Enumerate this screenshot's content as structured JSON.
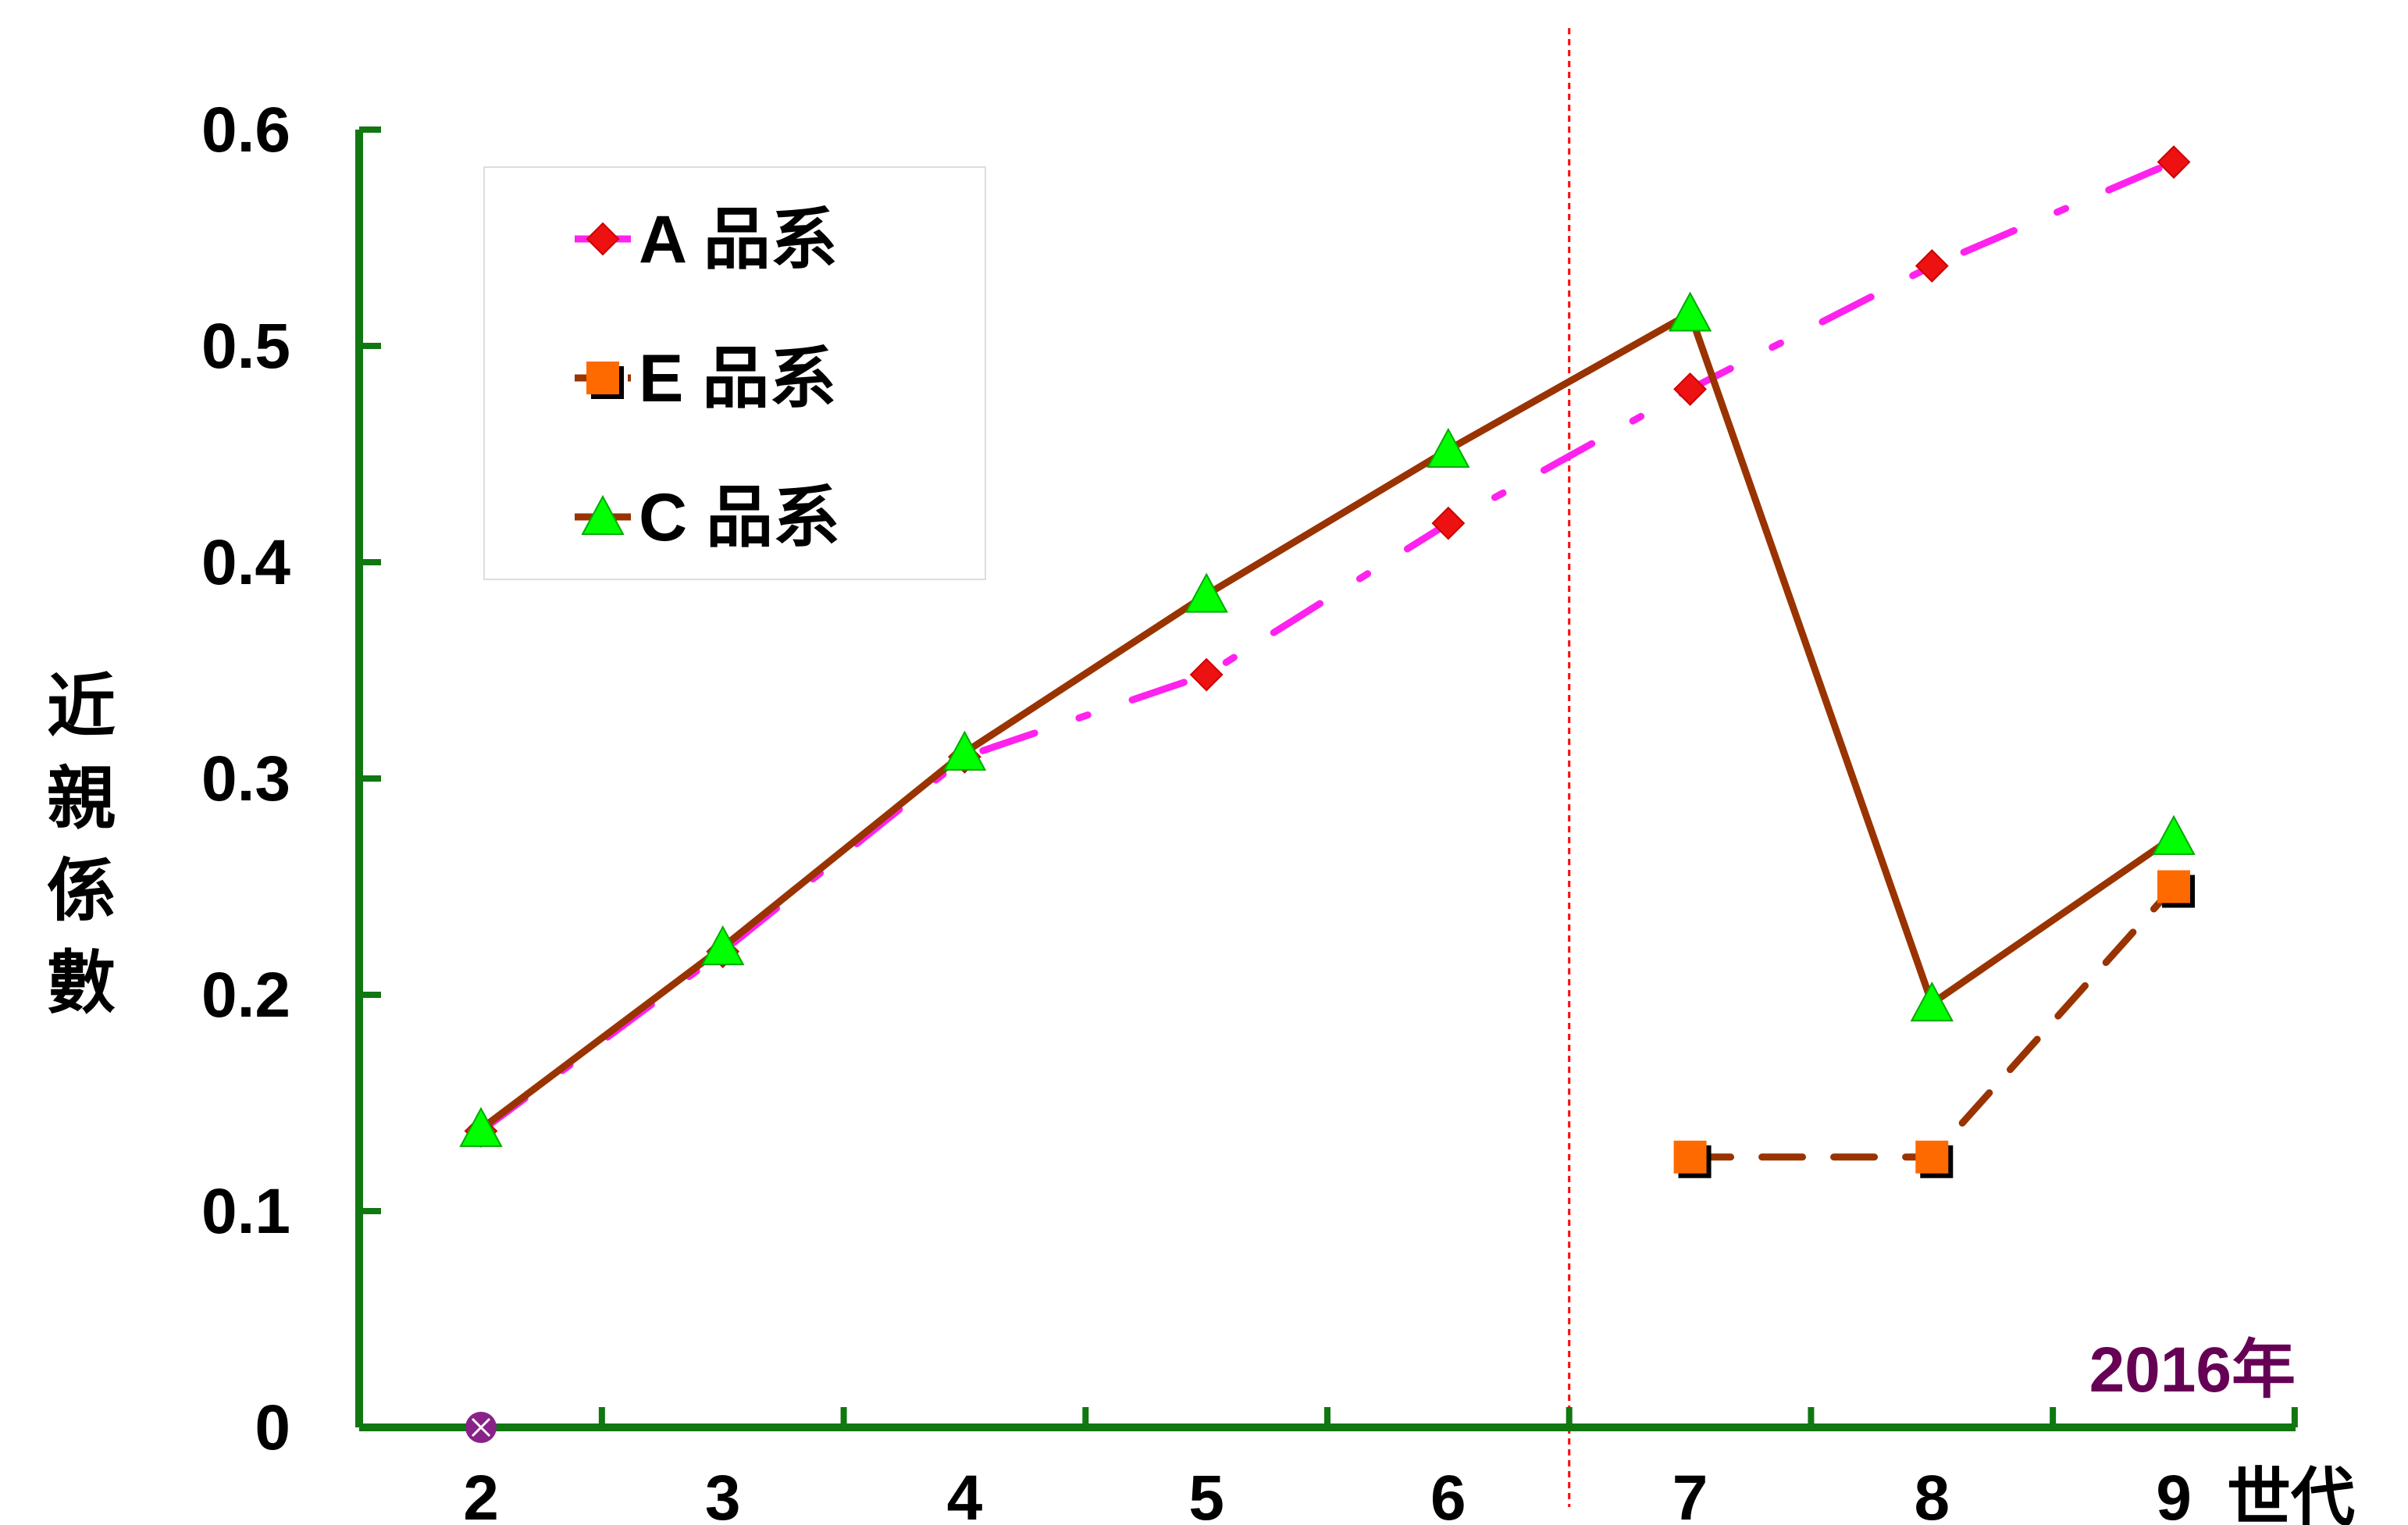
{
  "chart_data": {
    "type": "line",
    "categories": [
      "2",
      "3",
      "4",
      "5",
      "6",
      "7",
      "8",
      "9"
    ],
    "xlabel": "世代",
    "ylabel": "近親係數",
    "ylim": [
      0,
      0.6
    ],
    "yticks": [
      "0",
      "0.1",
      "0.2",
      "0.3",
      "0.4",
      "0.5",
      "0.6"
    ],
    "annotation": "2016年",
    "divider_between": [
      "6",
      "7"
    ],
    "legend_position": "top-left",
    "origin_marker_value": 0,
    "series": [
      {
        "name": "A 品系",
        "values": [
          0.137,
          0.22,
          0.31,
          0.348,
          0.418,
          0.48,
          0.537,
          0.585
        ],
        "line_color": "#ff22ee",
        "marker_color": "#ee1111",
        "marker": "diamond",
        "dash": "dashdot"
      },
      {
        "name": "E 品系",
        "values": [
          null,
          null,
          null,
          null,
          null,
          0.125,
          0.125,
          0.25
        ],
        "line_color": "#993300",
        "marker_color": "#ff6a00",
        "marker": "square",
        "dash": "dashed"
      },
      {
        "name": "C 品系",
        "values": [
          0.138,
          0.222,
          0.312,
          0.385,
          0.452,
          0.515,
          0.196,
          0.273
        ],
        "line_color": "#993300",
        "marker_color": "#00ff00",
        "marker": "triangle",
        "dash": "solid"
      }
    ],
    "colors": {
      "axis": "#117711",
      "divider": "#ff0000",
      "annotation": "#660055",
      "origin_marker": "#882288"
    }
  }
}
